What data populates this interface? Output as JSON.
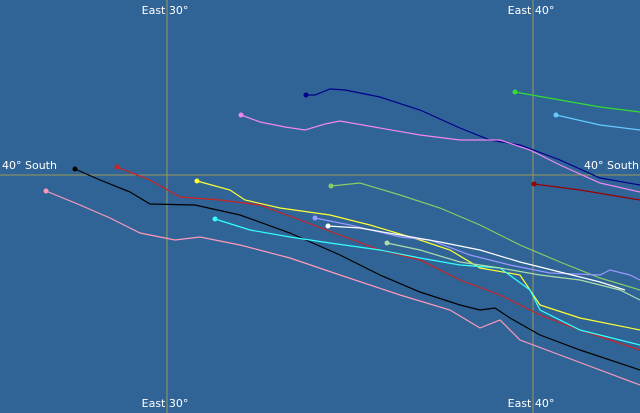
{
  "grid_labels": {
    "top": [
      "East 30°",
      "East 40°"
    ],
    "bottom": [
      "East 30°",
      "East 40°"
    ],
    "left": "40° South",
    "right": "40° South"
  }
}
